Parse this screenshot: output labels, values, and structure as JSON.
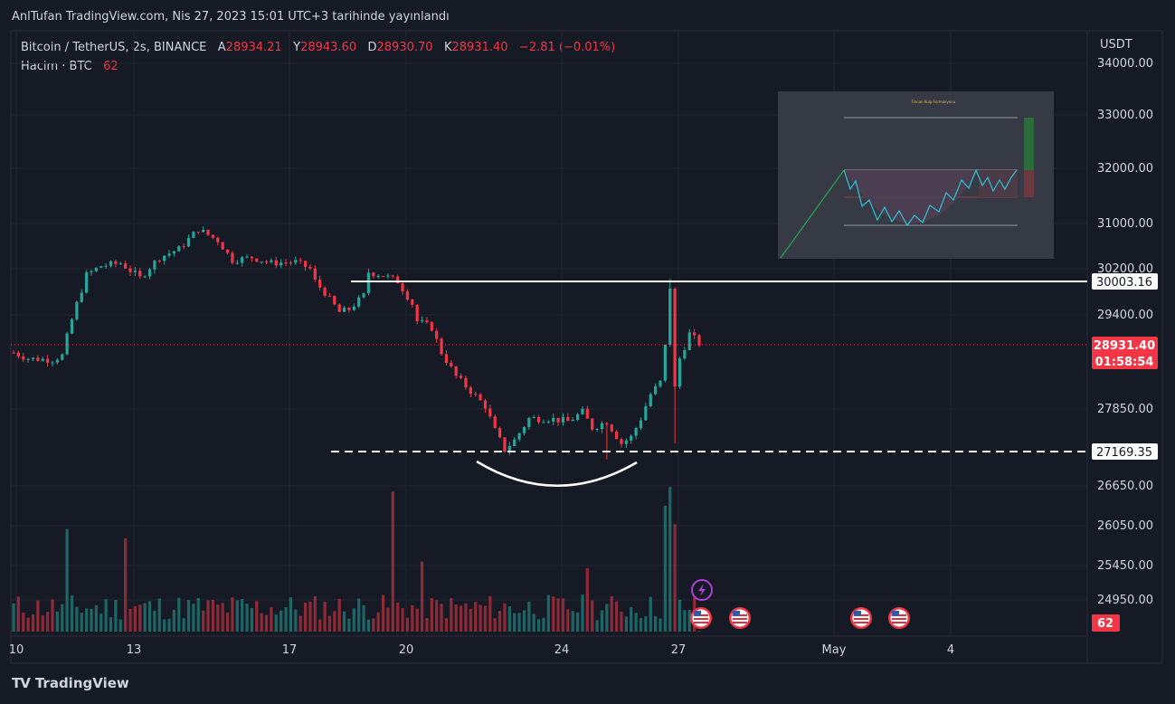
{
  "header": {
    "published": "AnlTufan TradingView.com, Nis 27, 2023 15:01 UTC+3 tarihinde yayınlandı"
  },
  "legend": {
    "symbol": "Bitcoin / TetherUS, 2s, BINANCE",
    "open_label": "A",
    "open": "28934.21",
    "high_label": "Y",
    "high": "28943.60",
    "low_label": "D",
    "low": "28930.70",
    "close_label": "K",
    "close": "28931.40",
    "change": "−2.81 (−0.01%)",
    "volume_label": "Hacim · BTC",
    "volume_value": "62"
  },
  "axis": {
    "currency": "USDT",
    "price_ticks": [
      "34000.00",
      "33000.00",
      "32000.00",
      "31000.00",
      "30200.00",
      "29400.00",
      "27850.00",
      "26650.00",
      "26050.00",
      "25450.00",
      "24950.00"
    ],
    "date_ticks": [
      "10",
      "13",
      "17",
      "20",
      "24",
      "27",
      "May",
      "4"
    ]
  },
  "price_labels": {
    "resistance": "30003.16",
    "current_price": "28931.40",
    "countdown": "01:58:54",
    "support": "27169.35",
    "volume": "62"
  },
  "inset": {
    "title": "Fincan Kulp Formasyonu"
  },
  "brand": {
    "name": "TradingView",
    "logo": "TV"
  },
  "colors": {
    "up": "#26a69a",
    "down": "#f23645",
    "background": "#161a25",
    "text": "#d1d4dc"
  },
  "chart_data": {
    "type": "candlestick",
    "symbol": "Bitcoin / TetherUS",
    "interval": "2s",
    "exchange": "BINANCE",
    "x_range": [
      "Apr 10",
      "May 4"
    ],
    "y_range": [
      24600,
      34300
    ],
    "levels": [
      {
        "type": "resistance-line",
        "price": 30003.16,
        "style": "solid"
      },
      {
        "type": "support-line",
        "price": 27169.35,
        "style": "dashed"
      },
      {
        "type": "current-price",
        "price": 28931.4,
        "style": "dotted"
      }
    ],
    "path": [
      [
        0,
        28800
      ],
      [
        3,
        28700
      ],
      [
        8,
        28680
      ],
      [
        10,
        28750
      ],
      [
        11,
        29050
      ],
      [
        13,
        29600
      ],
      [
        15,
        30100
      ],
      [
        18,
        30250
      ],
      [
        22,
        30300
      ],
      [
        26,
        30050
      ],
      [
        30,
        30400
      ],
      [
        34,
        30550
      ],
      [
        38,
        30900
      ],
      [
        42,
        30700
      ],
      [
        45,
        30350
      ],
      [
        49,
        30400
      ],
      [
        53,
        30300
      ],
      [
        58,
        30320
      ],
      [
        61,
        30200
      ],
      [
        62,
        30000
      ],
      [
        64,
        29800
      ],
      [
        67,
        29450
      ],
      [
        69,
        29500
      ],
      [
        72,
        29750
      ],
      [
        73,
        30150
      ],
      [
        76,
        30100
      ],
      [
        79,
        30000
      ],
      [
        82,
        29600
      ],
      [
        83,
        29300
      ],
      [
        86,
        29200
      ],
      [
        88,
        28800
      ],
      [
        91,
        28400
      ],
      [
        94,
        28150
      ],
      [
        97,
        27900
      ],
      [
        99,
        27500
      ],
      [
        101,
        27200
      ],
      [
        103,
        27350
      ],
      [
        106,
        27700
      ],
      [
        110,
        27700
      ],
      [
        114,
        27650
      ],
      [
        117,
        27800
      ],
      [
        119,
        27550
      ],
      [
        122,
        27650
      ],
      [
        125,
        27300
      ],
      [
        127,
        27400
      ],
      [
        129,
        27700
      ],
      [
        131,
        28100
      ],
      [
        133,
        28300
      ],
      [
        134,
        28900
      ],
      [
        135,
        29900
      ],
      [
        136,
        28200
      ],
      [
        137,
        28700
      ],
      [
        139,
        29100
      ],
      [
        141,
        28950
      ]
    ],
    "wicks": [
      {
        "i": 101,
        "low": 27150
      },
      {
        "i": 122,
        "low": 27050
      },
      {
        "i": 135,
        "high": 30050
      },
      {
        "i": 136,
        "low": 27300
      }
    ],
    "volume": {
      "typical_btc": 2000,
      "spikes": [
        {
          "i": 11,
          "value": 11000
        },
        {
          "i": 23,
          "value": 10000
        },
        {
          "i": 78,
          "value": 15000
        },
        {
          "i": 84,
          "value": 7500
        },
        {
          "i": 118,
          "value": 6800
        },
        {
          "i": 134,
          "value": 13500
        },
        {
          "i": 135,
          "value": 15500
        },
        {
          "i": 136,
          "value": 11500
        }
      ],
      "last": 62
    }
  }
}
